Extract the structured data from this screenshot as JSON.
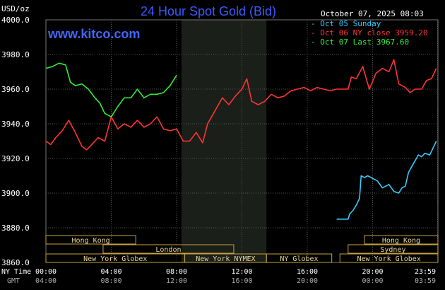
{
  "header": {
    "title": "24 Hour Spot Gold (Bid)",
    "unit": "USD/oz",
    "timestamp": "October 07, 2025 08:03",
    "site": "www.kitco.com"
  },
  "legend": [
    {
      "label": "Oct 05 Sunday",
      "color": "#33ccff"
    },
    {
      "label": "Oct 06 NY close 3959.20",
      "color": "#ff3333"
    },
    {
      "label": "Oct 07 Last 3967.60",
      "color": "#33ee33"
    }
  ],
  "colors": {
    "background": "#000000",
    "grid": "#555555",
    "axis_text": "#ffffff",
    "title": "#3b5bff",
    "site": "#4466ff",
    "session_box": "#c8a23a",
    "session_text": "#e8d6a0",
    "highlight_band": "#1a1f1a"
  },
  "time_axis": {
    "row1_label": "NY Time",
    "row2_label": "GMT",
    "ticks": [
      {
        "t": 0,
        "ny": "00:00",
        "gmt": "04:00"
      },
      {
        "t": 4,
        "ny": "04:00",
        "gmt": "08:00"
      },
      {
        "t": 8,
        "ny": "08:00",
        "gmt": "12:00"
      },
      {
        "t": 12,
        "ny": "12:00",
        "gmt": "16:00"
      },
      {
        "t": 16,
        "ny": "16:00",
        "gmt": "20:00"
      },
      {
        "t": 20,
        "ny": "20:00",
        "gmt": "00:00"
      },
      {
        "t": 23.98,
        "ny": "23:59",
        "gmt": "03:59"
      }
    ]
  },
  "sessions": [
    {
      "label": "Hong Kong",
      "start": 0,
      "end": 5.5,
      "row": 0
    },
    {
      "label": "Hong Kong",
      "start": 19.5,
      "end": 24,
      "row": 0
    },
    {
      "label": "London",
      "start": 3.5,
      "end": 11.5,
      "row": 1
    },
    {
      "label": "Sydney",
      "start": 18.5,
      "end": 24,
      "row": 1
    },
    {
      "label": "New York Globex",
      "start": 0,
      "end": 8.5,
      "row": 2
    },
    {
      "label": "New York NYMEX",
      "start": 8.5,
      "end": 13.5,
      "row": 2
    },
    {
      "label": "NY Globex",
      "start": 13.5,
      "end": 17.5,
      "row": 2
    },
    {
      "label": "New York Globex",
      "start": 18,
      "end": 24,
      "row": 2
    }
  ],
  "chart_data": {
    "type": "line",
    "title": "24 Hour Spot Gold (Bid)",
    "ylabel": "USD/oz",
    "ylim": [
      3860,
      4000
    ],
    "xlim": [
      0,
      24
    ],
    "yticks": [
      3860,
      3880,
      3900,
      3920,
      3940,
      3960,
      3980,
      4000
    ],
    "ytick_labels": [
      "3860.0",
      "3880.0",
      "3900.0",
      "3920.0",
      "3940.0",
      "3960.0",
      "3980.0",
      "4000.0"
    ],
    "grid": true,
    "legend_position": "top-right",
    "highlight_band": [
      8.3,
      13.5
    ],
    "series": [
      {
        "name": "Oct 05 Sunday",
        "color": "#33ccff",
        "x": [
          17.8,
          18.0,
          18.5,
          18.6,
          18.8,
          19.0,
          19.2,
          19.3,
          19.5,
          19.7,
          19.9,
          20.1,
          20.3,
          20.6,
          21.0,
          21.3,
          21.6,
          21.8,
          22.0,
          22.2,
          22.5,
          22.8,
          23.0,
          23.2,
          23.5,
          23.7,
          23.9
        ],
        "y": [
          3885,
          3885,
          3885,
          3888,
          3890,
          3893,
          3897,
          3910,
          3909,
          3910,
          3909,
          3908,
          3907,
          3903,
          3905,
          3901,
          3900,
          3903,
          3904,
          3912,
          3917,
          3922,
          3921,
          3923,
          3922,
          3926,
          3930
        ]
      },
      {
        "name": "Oct 06 NY close 3959.20",
        "color": "#ff3333",
        "x": [
          0.0,
          0.3,
          0.6,
          1.0,
          1.4,
          1.8,
          2.2,
          2.5,
          2.8,
          3.2,
          3.6,
          4.0,
          4.4,
          4.8,
          5.2,
          5.6,
          6.0,
          6.4,
          6.8,
          7.2,
          7.6,
          8.0,
          8.4,
          8.8,
          9.2,
          9.6,
          9.9,
          10.2,
          10.5,
          10.8,
          11.2,
          11.6,
          12.0,
          12.3,
          12.6,
          13.0,
          13.4,
          13.8,
          14.2,
          14.6,
          15.0,
          15.4,
          15.8,
          16.2,
          16.6,
          17.0,
          17.4,
          17.8,
          18.2,
          18.5,
          18.7,
          19.0,
          19.4,
          19.8,
          20.2,
          20.6,
          21.0,
          21.3,
          21.6,
          22.0,
          22.3,
          22.6,
          23.0,
          23.3,
          23.6,
          23.9
        ],
        "y": [
          3930,
          3928,
          3932,
          3936,
          3942,
          3935,
          3927,
          3925,
          3928,
          3932,
          3930,
          3944,
          3937,
          3940,
          3938,
          3942,
          3938,
          3940,
          3944,
          3937,
          3936,
          3937,
          3930,
          3930,
          3935,
          3929,
          3940,
          3945,
          3950,
          3955,
          3951,
          3956,
          3960,
          3966,
          3953,
          3951,
          3953,
          3957,
          3955,
          3956,
          3959,
          3960,
          3961,
          3959,
          3961,
          3960,
          3959,
          3960,
          3960,
          3960,
          3967,
          3966,
          3973,
          3960,
          3969,
          3972,
          3970,
          3977,
          3963,
          3961,
          3958,
          3960,
          3960,
          3965,
          3966,
          3972
        ]
      },
      {
        "name": "Oct 07 Last 3967.60",
        "color": "#33ee33",
        "x": [
          0.0,
          0.4,
          0.8,
          1.2,
          1.5,
          1.8,
          2.2,
          2.6,
          3.0,
          3.3,
          3.6,
          4.0,
          4.4,
          4.8,
          5.2,
          5.6,
          6.0,
          6.4,
          6.8,
          7.2,
          7.6,
          8.0
        ],
        "y": [
          3972,
          3973,
          3975,
          3974,
          3964,
          3962,
          3963,
          3960,
          3955,
          3952,
          3946,
          3944,
          3950,
          3955,
          3955,
          3960,
          3955,
          3957,
          3957,
          3958,
          3962,
          3968
        ]
      }
    ]
  }
}
